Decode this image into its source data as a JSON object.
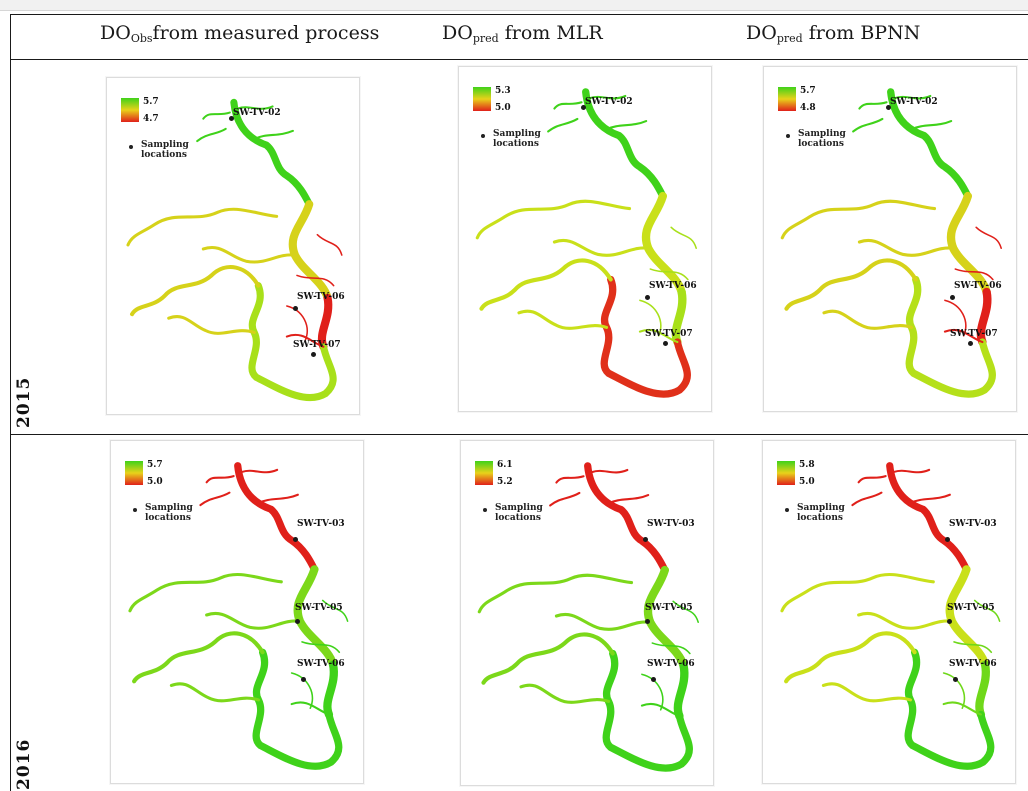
{
  "headers": {
    "col1": {
      "main": "DO",
      "sub": "Obs",
      "rest": "from measured process"
    },
    "col2": {
      "main": "DO",
      "sub": "pred",
      "rest": " from MLR"
    },
    "col3": {
      "main": "DO",
      "sub": "pred",
      "rest": " from BPNN"
    }
  },
  "rows": [
    {
      "year": "2015",
      "panels": [
        {
          "legend_max": "5.7",
          "legend_min": "4.7",
          "legend_label_1": "Sampling",
          "legend_label_2": "locations",
          "sites": [
            "SW-TV-02",
            "SW-TV-06",
            "SW-TV-07"
          ],
          "colors": {
            "upper": "#3fd21a",
            "mid": "#d6d21a",
            "low": "#e0201a",
            "south": "#a8e01a"
          }
        },
        {
          "legend_max": "5.3",
          "legend_min": "5.0",
          "legend_label_1": "Sampling",
          "legend_label_2": "locations",
          "sites": [
            "SW-TV-02",
            "SW-TV-06",
            "SW-TV-07"
          ],
          "colors": {
            "upper": "#3fd21a",
            "mid": "#c9e01a",
            "low": "#a8e01a",
            "south": "#e0301a"
          }
        },
        {
          "legend_max": "5.7",
          "legend_min": "4.8",
          "legend_label_1": "Sampling",
          "legend_label_2": "locations",
          "sites": [
            "SW-TV-02",
            "SW-TV-06",
            "SW-TV-07"
          ],
          "colors": {
            "upper": "#3fd21a",
            "mid": "#d6d21a",
            "low": "#e0201a",
            "south": "#b5e01a"
          }
        }
      ]
    },
    {
      "year": "2016",
      "panels": [
        {
          "legend_max": "5.7",
          "legend_min": "5.0",
          "legend_label_1": "Sampling",
          "legend_label_2": "locations",
          "sites": [
            "SW-TV-03",
            "SW-TV-05",
            "SW-TV-06"
          ],
          "colors": {
            "upper": "#e0201a",
            "mid": "#7cd81a",
            "low": "#3fd21a",
            "south": "#3fd21a"
          }
        },
        {
          "legend_max": "6.1",
          "legend_min": "5.2",
          "legend_label_1": "Sampling",
          "legend_label_2": "locations",
          "sites": [
            "SW-TV-03",
            "SW-TV-05",
            "SW-TV-06"
          ],
          "colors": {
            "upper": "#e0201a",
            "mid": "#7cd81a",
            "low": "#3fd21a",
            "south": "#3fd21a"
          }
        },
        {
          "legend_max": "5.8",
          "legend_min": "5.0",
          "legend_label_1": "Sampling",
          "legend_label_2": "locations",
          "sites": [
            "SW-TV-03",
            "SW-TV-05",
            "SW-TV-06"
          ],
          "colors": {
            "upper": "#e0201a",
            "mid": "#c9e01a",
            "low": "#6fd81a",
            "south": "#3fd21a"
          }
        }
      ]
    }
  ]
}
